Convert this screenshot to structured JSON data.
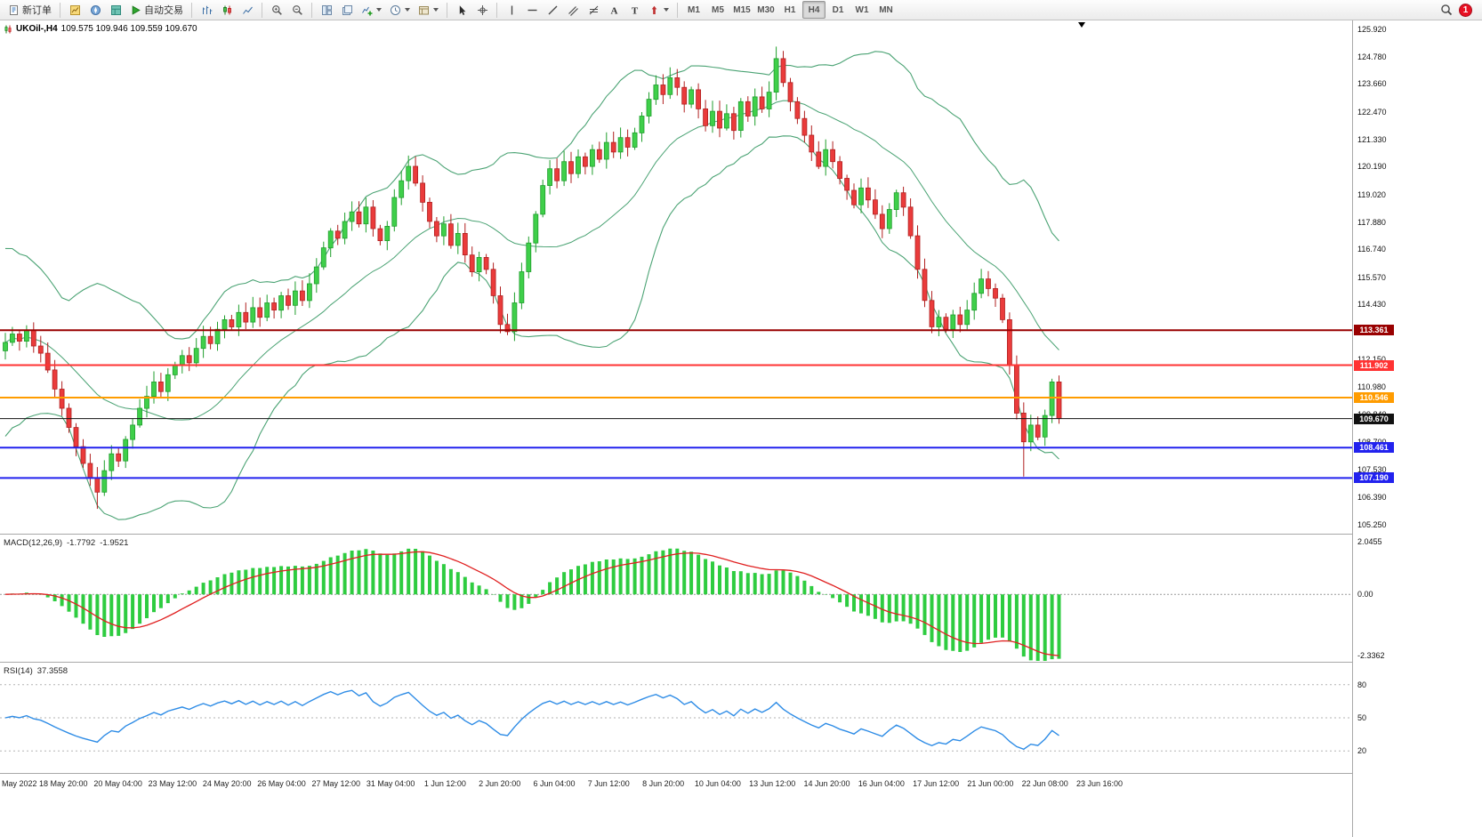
{
  "toolbar": {
    "new_order_label": "新订单",
    "autotrade_label": "自动交易",
    "timeframes": [
      "M1",
      "M5",
      "M15",
      "M30",
      "H1",
      "H4",
      "D1",
      "W1",
      "MN"
    ],
    "active_timeframe": "H4",
    "notification_count": "1"
  },
  "chart": {
    "symbol_label": "UKOil-,H4",
    "ohlc_text": "109.575 109.946 109.559 109.670"
  },
  "macd_panel": {
    "label": "MACD(12,26,9)",
    "value_main": "-1.7792",
    "value_signal": "-1.9521",
    "scale_max": "2.0455",
    "scale_zero": "0.00",
    "scale_min": "-2.3362"
  },
  "rsi_panel": {
    "label": "RSI(14)",
    "value": "37.3558",
    "levels": [
      "80",
      "50",
      "20"
    ]
  },
  "colors": {
    "candle_up": "#1f9e2c",
    "candle_up_fill": "#3fcf4a",
    "candle_down": "#b02020",
    "candle_down_fill": "#ea3b3b",
    "bollinger": "#4ba374",
    "macd_hist": "#2ecc40",
    "macd_signal": "#e02020",
    "rsi_line": "#2e8ce6",
    "rsi_level": "#b3b3b3"
  },
  "chart_data": {
    "type": "candlestick",
    "title": "UKOil-,H4",
    "symbol": "UKOil-",
    "timeframe": "H4",
    "ohlc_quote": {
      "open": 109.575,
      "high": 109.946,
      "low": 109.559,
      "close": 109.67
    },
    "current_price": 109.67,
    "ylim": [
      105.25,
      125.92
    ],
    "y_ticks": [
      "125.920",
      "124.780",
      "123.660",
      "122.470",
      "121.330",
      "120.190",
      "119.020",
      "117.880",
      "116.740",
      "115.570",
      "114.430",
      "113.290",
      "112.150",
      "110.980",
      "109.840",
      "108.700",
      "107.530",
      "106.390",
      "105.250"
    ],
    "x_labels": [
      "May 2022",
      "18 May 20:00",
      "20 May 04:00",
      "23 May 12:00",
      "24 May 20:00",
      "26 May 04:00",
      "27 May 12:00",
      "31 May 04:00",
      "1 Jun 12:00",
      "2 Jun 20:00",
      "6 Jun 04:00",
      "7 Jun 12:00",
      "8 Jun 20:00",
      "10 Jun 04:00",
      "13 Jun 12:00",
      "14 Jun 20:00",
      "16 Jun 04:00",
      "17 Jun 12:00",
      "21 Jun 00:00",
      "22 Jun 08:00",
      "23 Jun 16:00"
    ],
    "first_open": 112.5,
    "closes": [
      112.85,
      113.2,
      112.9,
      113.35,
      112.7,
      112.4,
      111.7,
      110.9,
      110.1,
      109.3,
      108.5,
      107.8,
      107.2,
      106.6,
      107.5,
      108.2,
      107.9,
      108.8,
      109.4,
      110.1,
      110.6,
      111.2,
      110.8,
      111.5,
      111.9,
      112.3,
      112.0,
      112.6,
      113.1,
      112.8,
      113.4,
      113.8,
      113.5,
      114.1,
      113.7,
      114.3,
      113.9,
      114.5,
      114.2,
      114.8,
      114.4,
      115.0,
      114.6,
      115.3,
      116.0,
      116.8,
      117.5,
      117.2,
      117.9,
      118.3,
      117.8,
      118.5,
      117.6,
      117.1,
      117.7,
      118.9,
      119.6,
      120.2,
      119.5,
      118.7,
      117.9,
      117.3,
      117.8,
      116.9,
      117.4,
      116.5,
      115.8,
      116.4,
      115.9,
      114.8,
      113.6,
      113.3,
      114.5,
      115.8,
      117.0,
      118.2,
      119.4,
      120.1,
      119.6,
      120.4,
      119.9,
      120.6,
      120.2,
      120.9,
      120.5,
      121.2,
      120.8,
      121.4,
      121.0,
      121.6,
      122.3,
      123.0,
      123.6,
      123.2,
      123.9,
      123.5,
      122.8,
      123.4,
      122.6,
      121.9,
      122.5,
      121.8,
      122.4,
      121.7,
      122.9,
      122.3,
      123.1,
      122.6,
      123.3,
      124.7,
      123.7,
      122.9,
      122.2,
      121.5,
      120.8,
      120.2,
      120.9,
      120.4,
      119.7,
      119.2,
      118.6,
      119.3,
      118.8,
      118.2,
      117.6,
      118.4,
      119.1,
      118.5,
      117.3,
      115.9,
      114.6,
      113.5,
      113.9,
      113.4,
      114.0,
      113.6,
      114.2,
      114.9,
      115.5,
      115.1,
      114.7,
      113.8,
      111.9,
      109.9,
      108.7,
      109.4,
      108.9,
      109.8,
      111.2,
      109.67
    ],
    "wick_overrides": {
      "13": {
        "low": 105.9
      },
      "109": {
        "high": 125.2
      },
      "144": {
        "low": 107.25
      }
    },
    "hlines": [
      {
        "price": 113.361,
        "label": "113.361",
        "color": "#990000",
        "width": 2,
        "role": "resistance-line"
      },
      {
        "price": 111.902,
        "label": "111.902",
        "color": "#ff3333",
        "width": 2,
        "role": "resistance-line"
      },
      {
        "price": 110.546,
        "label": "110.546",
        "color": "#ff9c00",
        "width": 2,
        "role": "pivot-line"
      },
      {
        "price": 109.67,
        "label": "109.670",
        "color": "#111111",
        "width": 1,
        "role": "current-price"
      },
      {
        "price": 108.461,
        "label": "108.461",
        "color": "#2222ee",
        "width": 2,
        "role": "support-line"
      },
      {
        "price": 107.19,
        "label": "107.190",
        "color": "#2222ee",
        "width": 2,
        "role": "support-line"
      }
    ],
    "indicators": [
      {
        "name": "Bollinger Bands",
        "params": [
          20,
          2
        ]
      },
      {
        "name": "MACD",
        "params": [
          12,
          26,
          9
        ],
        "main": -1.7792,
        "signal": -1.9521
      },
      {
        "name": "RSI",
        "params": [
          14
        ],
        "value": 37.3558
      }
    ]
  }
}
